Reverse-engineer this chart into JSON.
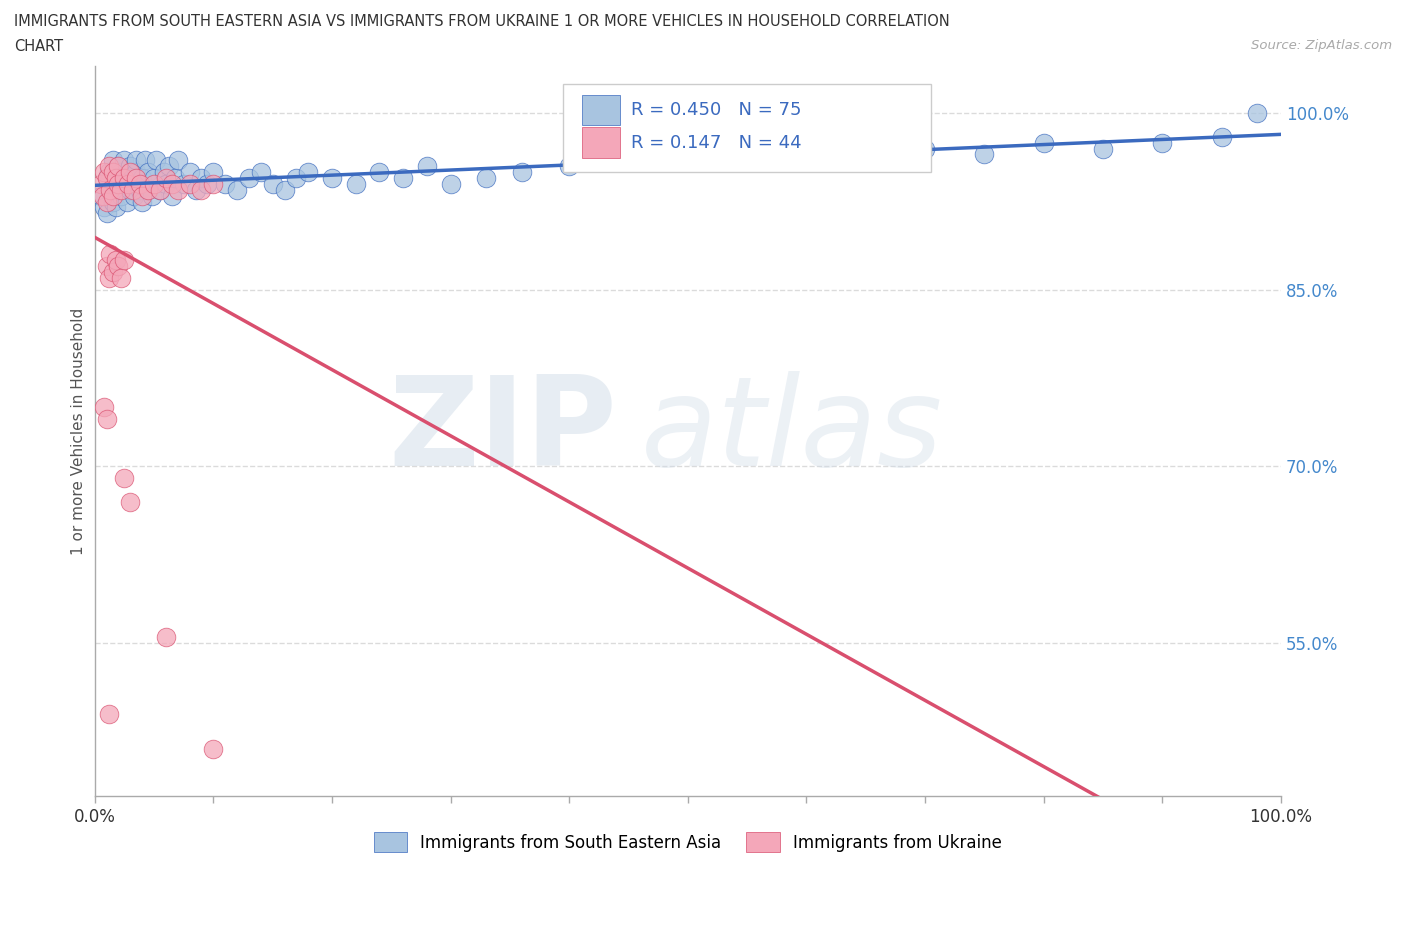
{
  "title_line1": "IMMIGRANTS FROM SOUTH EASTERN ASIA VS IMMIGRANTS FROM UKRAINE 1 OR MORE VEHICLES IN HOUSEHOLD CORRELATION",
  "title_line2": "CHART",
  "source_text": "Source: ZipAtlas.com",
  "ylabel": "1 or more Vehicles in Household",
  "legend_label1": "Immigrants from South Eastern Asia",
  "legend_label2": "Immigrants from Ukraine",
  "R1": 0.45,
  "N1": 75,
  "R2": 0.147,
  "N2": 44,
  "color1": "#a8c4e0",
  "color2": "#f4a7b9",
  "trendline1_color": "#3b6abf",
  "trendline2_color": "#d94f6e",
  "watermark_zip": "ZIP",
  "watermark_atlas": "atlas",
  "background_color": "#ffffff",
  "grid_color": "#cccccc",
  "ytick_vals": [
    0.55,
    0.7,
    0.85,
    1.0
  ],
  "ytick_labels": [
    "55.0%",
    "70.0%",
    "85.0%",
    "100.0%"
  ],
  "xlim": [
    0.0,
    1.0
  ],
  "ylim": [
    0.42,
    1.04
  ],
  "blue_scatter_x": [
    0.005,
    0.008,
    0.01,
    0.01,
    0.012,
    0.013,
    0.015,
    0.015,
    0.016,
    0.018,
    0.02,
    0.02,
    0.022,
    0.022,
    0.025,
    0.025,
    0.027,
    0.028,
    0.03,
    0.03,
    0.032,
    0.033,
    0.035,
    0.035,
    0.038,
    0.04,
    0.04,
    0.042,
    0.045,
    0.045,
    0.048,
    0.05,
    0.052,
    0.055,
    0.058,
    0.06,
    0.063,
    0.065,
    0.068,
    0.07,
    0.075,
    0.08,
    0.085,
    0.09,
    0.095,
    0.1,
    0.11,
    0.12,
    0.13,
    0.14,
    0.15,
    0.16,
    0.17,
    0.18,
    0.2,
    0.22,
    0.24,
    0.26,
    0.28,
    0.3,
    0.33,
    0.36,
    0.4,
    0.45,
    0.5,
    0.55,
    0.6,
    0.65,
    0.7,
    0.75,
    0.8,
    0.85,
    0.9,
    0.95,
    0.98
  ],
  "blue_scatter_y": [
    0.93,
    0.92,
    0.945,
    0.915,
    0.95,
    0.935,
    0.925,
    0.96,
    0.94,
    0.92,
    0.935,
    0.955,
    0.93,
    0.95,
    0.94,
    0.96,
    0.925,
    0.945,
    0.935,
    0.955,
    0.94,
    0.93,
    0.95,
    0.96,
    0.935,
    0.925,
    0.945,
    0.96,
    0.935,
    0.95,
    0.93,
    0.945,
    0.96,
    0.935,
    0.95,
    0.94,
    0.955,
    0.93,
    0.945,
    0.96,
    0.94,
    0.95,
    0.935,
    0.945,
    0.94,
    0.95,
    0.94,
    0.935,
    0.945,
    0.95,
    0.94,
    0.935,
    0.945,
    0.95,
    0.945,
    0.94,
    0.95,
    0.945,
    0.955,
    0.94,
    0.945,
    0.95,
    0.955,
    0.96,
    0.965,
    0.96,
    0.97,
    0.96,
    0.97,
    0.965,
    0.975,
    0.97,
    0.975,
    0.98,
    1.0
  ],
  "pink_scatter_x": [
    0.005,
    0.007,
    0.008,
    0.01,
    0.01,
    0.012,
    0.013,
    0.015,
    0.015,
    0.018,
    0.02,
    0.02,
    0.022,
    0.025,
    0.028,
    0.03,
    0.032,
    0.035,
    0.038,
    0.04,
    0.045,
    0.05,
    0.055,
    0.06,
    0.065,
    0.07,
    0.08,
    0.09,
    0.1,
    0.01,
    0.012,
    0.013,
    0.015,
    0.018,
    0.02,
    0.022,
    0.025,
    0.008,
    0.01,
    0.025,
    0.03,
    0.06,
    0.012,
    0.1
  ],
  "pink_scatter_y": [
    0.94,
    0.93,
    0.95,
    0.945,
    0.925,
    0.955,
    0.935,
    0.95,
    0.93,
    0.945,
    0.94,
    0.955,
    0.935,
    0.945,
    0.94,
    0.95,
    0.935,
    0.945,
    0.94,
    0.93,
    0.935,
    0.94,
    0.935,
    0.945,
    0.94,
    0.935,
    0.94,
    0.935,
    0.94,
    0.87,
    0.86,
    0.88,
    0.865,
    0.875,
    0.87,
    0.86,
    0.875,
    0.75,
    0.74,
    0.69,
    0.67,
    0.555,
    0.49,
    0.46
  ]
}
